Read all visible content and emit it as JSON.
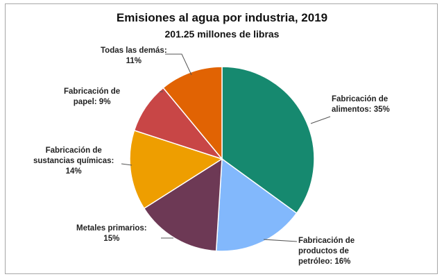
{
  "chart_data": {
    "type": "pie",
    "title": "Emisiones al agua por industria, 2019",
    "subtitle": "201.25 millones de libras",
    "slices": [
      {
        "label": "Fabricación de alimentos",
        "text": [
          "Fabricación de",
          "alimentos: 35%"
        ],
        "value": 35,
        "color": "#16896f"
      },
      {
        "label": "Fabricación de productos de petróleo",
        "text": [
          "Fabricación de",
          "productos de",
          "petróleo: 16%"
        ],
        "value": 16,
        "color": "#82b8fc"
      },
      {
        "label": "Metales primarios",
        "text": [
          "Metales primarios:",
          "15%"
        ],
        "value": 15,
        "color": "#6d3955"
      },
      {
        "label": "Fabricación de sustancias químicas",
        "text": [
          "Fabricación de",
          "sustancias químicas:",
          "14%"
        ],
        "value": 14,
        "color": "#ee9e00"
      },
      {
        "label": "Fabricación de papel",
        "text": [
          "Fabricación de",
          "papel: 9%"
        ],
        "value": 9,
        "color": "#c84646"
      },
      {
        "label": "Todas las demás",
        "text": [
          "Todas las demás:",
          "11%"
        ],
        "value": 11,
        "color": "#e16303"
      }
    ],
    "start": "top",
    "direction": "clockwise",
    "legend": "none"
  }
}
